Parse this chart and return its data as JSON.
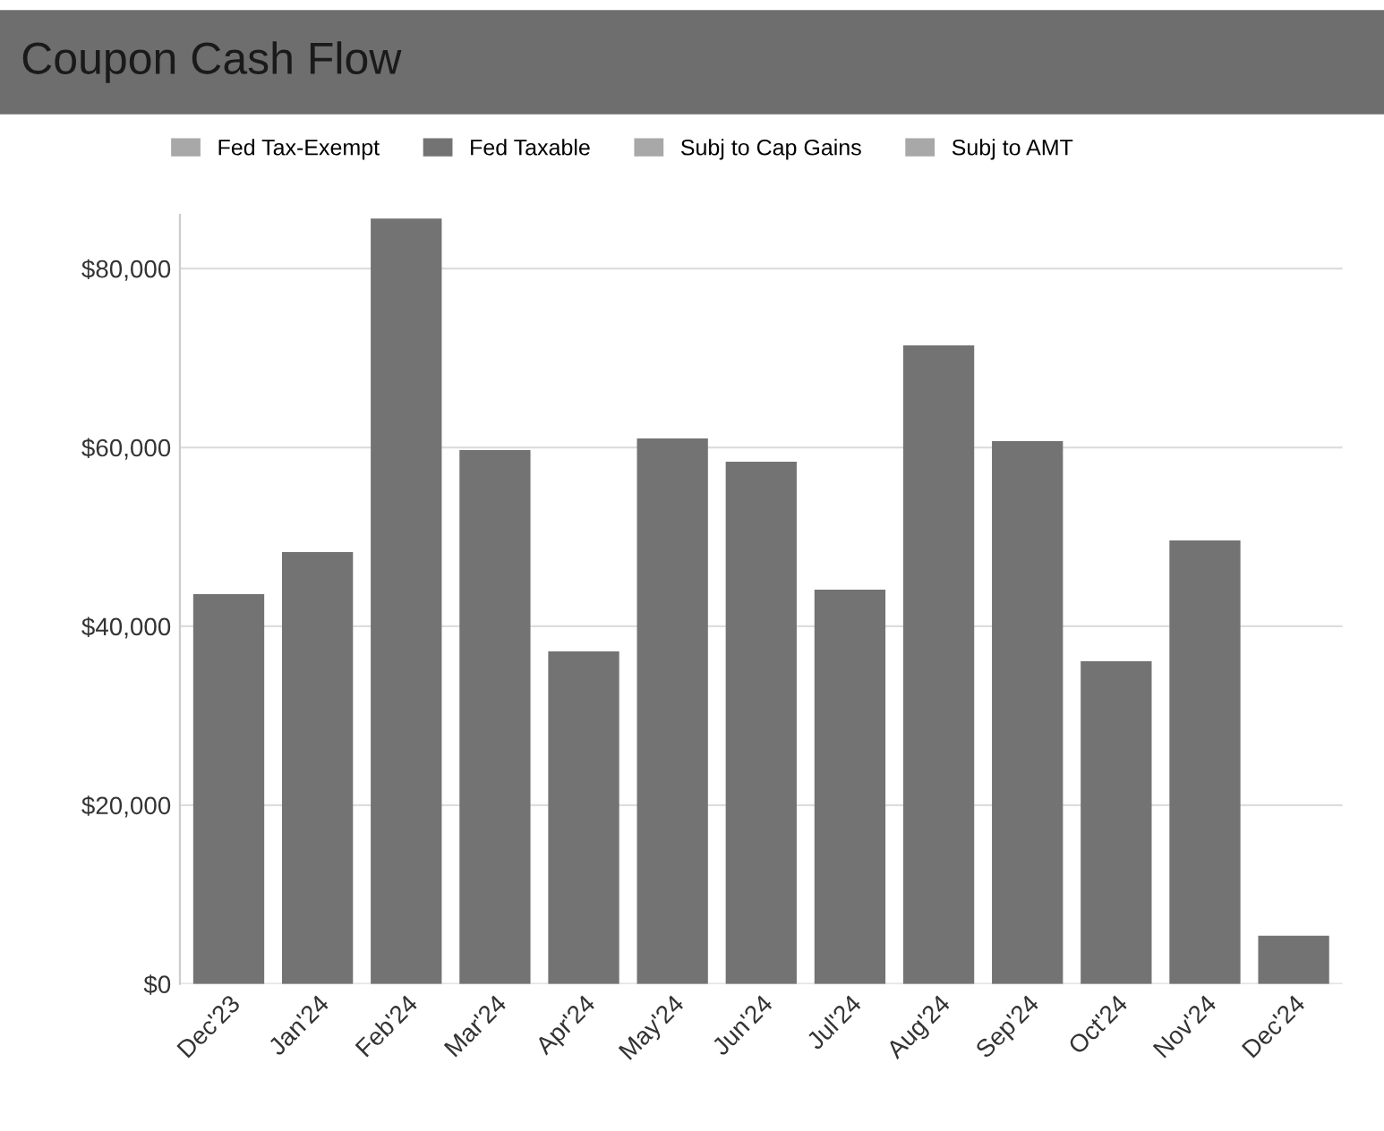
{
  "chart_data": {
    "type": "bar",
    "title": "Coupon Cash Flow",
    "categories": [
      "Dec'23",
      "Jan'24",
      "Feb'24",
      "Mar'24",
      "Apr'24",
      "May'24",
      "Jun'24",
      "Jul'24",
      "Aug'24",
      "Sep'24",
      "Oct'24",
      "Nov'24",
      "Dec'24"
    ],
    "series": [
      {
        "name": "Fed Tax-Exempt",
        "color": "#a8a8a8",
        "values": [
          null,
          null,
          null,
          null,
          null,
          null,
          null,
          null,
          null,
          null,
          null,
          null,
          null
        ]
      },
      {
        "name": "Fed Taxable",
        "color": "#737373",
        "values": [
          43600,
          48300,
          85600,
          59700,
          37200,
          61000,
          58400,
          44100,
          71400,
          60700,
          36100,
          49600,
          5400
        ]
      },
      {
        "name": "Subj to Cap Gains",
        "color": "#a8a8a8",
        "values": [
          null,
          null,
          null,
          null,
          null,
          null,
          null,
          null,
          null,
          null,
          null,
          null,
          null
        ]
      },
      {
        "name": "Subj to AMT",
        "color": "#a8a8a8",
        "values": [
          null,
          null,
          null,
          null,
          null,
          null,
          null,
          null,
          null,
          null,
          null,
          null,
          null
        ]
      }
    ],
    "ylim": [
      0,
      86000
    ],
    "yticks": [
      {
        "value": 0,
        "label": "$0"
      },
      {
        "value": 20000,
        "label": "$20,000"
      },
      {
        "value": 40000,
        "label": "$40,000"
      },
      {
        "value": 60000,
        "label": "$60,000"
      },
      {
        "value": 80000,
        "label": "$80,000"
      }
    ],
    "grid": "y",
    "legend": "top"
  }
}
